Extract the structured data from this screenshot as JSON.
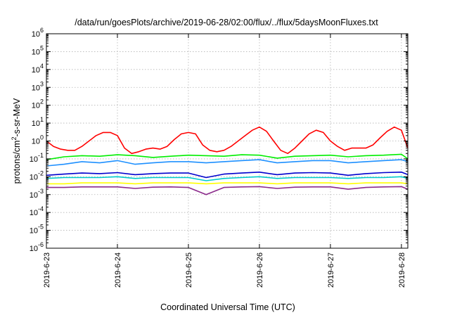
{
  "chart_data": {
    "type": "line",
    "title": "/data/run/goesPlots/archive/2019-06-28/02:00/flux/../flux/5daysMoonFluxes.txt",
    "xlabel": "Coordinated Universal Time (UTC)",
    "ylabel": "protons/cm²-s-sr-MeV",
    "ylabel_parts": {
      "before": "protons/cm",
      "sup": "2",
      "after": "-s-sr-MeV"
    },
    "yscale": "log",
    "ylim_exp": [
      -6,
      6
    ],
    "y_ticks": [
      {
        "base": "10",
        "exp": "-6"
      },
      {
        "base": "10",
        "exp": "-5"
      },
      {
        "base": "10",
        "exp": "-4"
      },
      {
        "base": "10",
        "exp": "-3"
      },
      {
        "base": "10",
        "exp": "-2"
      },
      {
        "base": "10",
        "exp": "-1"
      },
      {
        "base": "10",
        "exp": "0"
      },
      {
        "base": "10",
        "exp": "1"
      },
      {
        "base": "10",
        "exp": "2"
      },
      {
        "base": "10",
        "exp": "3"
      },
      {
        "base": "10",
        "exp": "4"
      },
      {
        "base": "10",
        "exp": "5"
      },
      {
        "base": "10",
        "exp": "6"
      }
    ],
    "x_ticks": [
      "2019-6-23",
      "2019-6-24",
      "2019-6-25",
      "2019-6-26",
      "2019-6-27",
      "2019-6-28"
    ],
    "x_tick_days": [
      0,
      1,
      2,
      3,
      4,
      5
    ],
    "xlim_days": [
      0,
      5.09
    ],
    "grid": true,
    "legend": "none",
    "series": [
      {
        "color": "#ff0000",
        "x": [
          0,
          0.1,
          0.2,
          0.3,
          0.4,
          0.5,
          0.6,
          0.7,
          0.8,
          0.9,
          1,
          1.1,
          1.2,
          1.3,
          1.4,
          1.5,
          1.6,
          1.7,
          1.8,
          1.9,
          2,
          2.1,
          2.2,
          2.3,
          2.4,
          2.5,
          2.6,
          2.7,
          2.8,
          2.9,
          3,
          3.1,
          3.2,
          3.3,
          3.4,
          3.5,
          3.6,
          3.7,
          3.8,
          3.9,
          4,
          4.1,
          4.2,
          4.3,
          4.4,
          4.5,
          4.6,
          4.7,
          4.8,
          4.9,
          5,
          5.09
        ],
        "y": [
          1.0,
          0.5,
          0.35,
          0.3,
          0.3,
          0.5,
          1.0,
          2.0,
          3.0,
          3.0,
          2.0,
          0.4,
          0.2,
          0.25,
          0.35,
          0.4,
          0.35,
          0.5,
          1.2,
          2.5,
          3.0,
          2.5,
          0.6,
          0.3,
          0.25,
          0.3,
          0.5,
          1.0,
          2.0,
          4.0,
          6.0,
          3.5,
          1.0,
          0.3,
          0.2,
          0.4,
          1.0,
          2.5,
          4.0,
          3.0,
          1.0,
          0.5,
          0.3,
          0.4,
          0.4,
          0.4,
          0.6,
          1.5,
          3.5,
          6.0,
          4.0,
          0.4
        ]
      },
      {
        "color": "#00ee00",
        "x": [
          0,
          0.25,
          0.5,
          0.75,
          1,
          1.25,
          1.5,
          1.75,
          2,
          2.25,
          2.5,
          2.75,
          3,
          3.25,
          3.5,
          3.75,
          4,
          4.25,
          4.5,
          4.75,
          5,
          5.09
        ],
        "y": [
          0.09,
          0.13,
          0.15,
          0.14,
          0.17,
          0.15,
          0.12,
          0.14,
          0.16,
          0.15,
          0.14,
          0.17,
          0.16,
          0.11,
          0.14,
          0.15,
          0.16,
          0.13,
          0.15,
          0.16,
          0.18,
          0.1
        ]
      },
      {
        "color": "#1e90ff",
        "x": [
          0,
          0.25,
          0.5,
          0.75,
          1,
          1.25,
          1.5,
          1.75,
          2,
          2.25,
          2.5,
          2.75,
          3,
          3.25,
          3.5,
          3.75,
          4,
          4.25,
          4.5,
          4.75,
          5,
          5.09
        ],
        "y": [
          0.04,
          0.05,
          0.07,
          0.06,
          0.08,
          0.05,
          0.06,
          0.07,
          0.07,
          0.06,
          0.07,
          0.08,
          0.09,
          0.06,
          0.07,
          0.08,
          0.08,
          0.06,
          0.07,
          0.08,
          0.09,
          0.07
        ]
      },
      {
        "color": "#0000cd",
        "x": [
          0,
          0.25,
          0.5,
          0.75,
          1,
          1.25,
          1.5,
          1.75,
          2,
          2.25,
          2.5,
          2.75,
          3,
          3.25,
          3.5,
          3.75,
          4,
          4.25,
          4.5,
          4.75,
          5,
          5.09
        ],
        "y": [
          0.012,
          0.014,
          0.016,
          0.015,
          0.017,
          0.013,
          0.015,
          0.016,
          0.016,
          0.009,
          0.014,
          0.016,
          0.018,
          0.013,
          0.016,
          0.017,
          0.016,
          0.012,
          0.015,
          0.017,
          0.018,
          0.013
        ]
      },
      {
        "color": "#00cccc",
        "x": [
          0,
          0.25,
          0.5,
          0.75,
          1,
          1.25,
          1.5,
          1.75,
          2,
          2.25,
          2.5,
          2.75,
          3,
          3.25,
          3.5,
          3.75,
          4,
          4.25,
          4.5,
          4.75,
          5,
          5.09
        ],
        "y": [
          0.008,
          0.009,
          0.009,
          0.009,
          0.01,
          0.008,
          0.009,
          0.009,
          0.009,
          0.006,
          0.008,
          0.009,
          0.01,
          0.008,
          0.009,
          0.009,
          0.009,
          0.008,
          0.009,
          0.009,
          0.01,
          0.008
        ]
      },
      {
        "color": "#ffff00",
        "x": [
          0,
          0.25,
          0.5,
          0.75,
          1,
          1.25,
          1.5,
          1.75,
          2,
          2.25,
          2.5,
          2.75,
          3,
          3.25,
          3.5,
          3.75,
          4,
          4.25,
          4.5,
          4.75,
          5,
          5.09
        ],
        "y": [
          0.004,
          0.004,
          0.0045,
          0.0045,
          0.0045,
          0.004,
          0.0045,
          0.0045,
          0.0045,
          0.004,
          0.0045,
          0.0045,
          0.0045,
          0.004,
          0.0045,
          0.0045,
          0.0045,
          0.004,
          0.0045,
          0.0045,
          0.0045,
          0.004
        ]
      },
      {
        "color": "#8b2a8b",
        "x": [
          0,
          0.25,
          0.5,
          0.75,
          1,
          1.25,
          1.5,
          1.75,
          2,
          2.25,
          2.5,
          2.75,
          3,
          3.25,
          3.5,
          3.75,
          4,
          4.25,
          4.5,
          4.75,
          5,
          5.09
        ],
        "y": [
          0.0025,
          0.0025,
          0.0027,
          0.0027,
          0.0027,
          0.0022,
          0.0026,
          0.0027,
          0.0025,
          0.001,
          0.0025,
          0.0027,
          0.0028,
          0.0022,
          0.0026,
          0.0027,
          0.0027,
          0.002,
          0.0025,
          0.0027,
          0.0028,
          0.002
        ]
      }
    ]
  }
}
